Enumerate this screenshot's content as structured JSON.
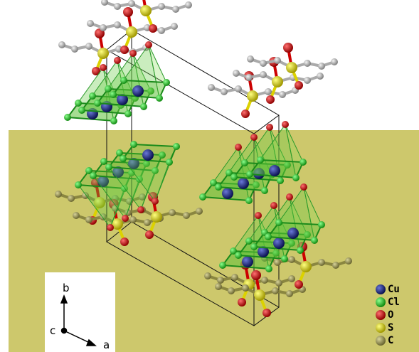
{
  "axes_inset": {
    "labels": [
      "b",
      "c",
      "a"
    ]
  },
  "legend": {
    "items": [
      {
        "label": "Cu"
      },
      {
        "label": "Cl"
      },
      {
        "label": "O"
      },
      {
        "label": "S"
      },
      {
        "label": "C"
      }
    ]
  }
}
